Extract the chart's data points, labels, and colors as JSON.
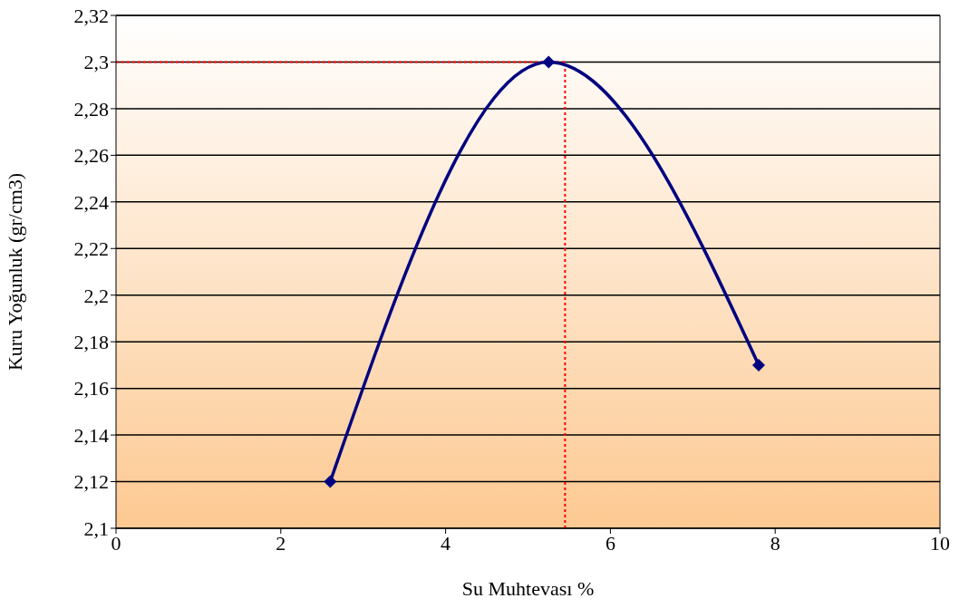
{
  "chart_data": {
    "type": "line",
    "xlabel": "Su Muhtevası %",
    "ylabel": "Kuru Yoğunluk (gr/cm3)",
    "x": [
      2.6,
      5.25,
      7.8
    ],
    "series": [
      {
        "color": "#000080",
        "values": [
          2.12,
          2.3,
          2.17
        ]
      }
    ],
    "xlim": [
      0,
      10
    ],
    "xticks": [
      0,
      2,
      4,
      6,
      8,
      10
    ],
    "ylim": [
      2.1,
      2.32
    ],
    "yticks": [
      {
        "value": 2.1,
        "label": "2,1"
      },
      {
        "value": 2.12,
        "label": "2,12"
      },
      {
        "value": 2.14,
        "label": "2,14"
      },
      {
        "value": 2.16,
        "label": "2,16"
      },
      {
        "value": 2.18,
        "label": "2,18"
      },
      {
        "value": 2.2,
        "label": "2,2"
      },
      {
        "value": 2.22,
        "label": "2,22"
      },
      {
        "value": 2.24,
        "label": "2,24"
      },
      {
        "value": 2.26,
        "label": "2,26"
      },
      {
        "value": 2.28,
        "label": "2,28"
      },
      {
        "value": 2.3,
        "label": "2,3"
      },
      {
        "value": 2.32,
        "label": "2,32"
      }
    ],
    "grid": "y",
    "marker": "diamond",
    "line_style": "solid",
    "legend": false,
    "ref_lines": [
      {
        "axis": "x",
        "value": 5.45,
        "color": "#ff0000",
        "line_style": "dotted"
      },
      {
        "axis": "y",
        "value": 2.3,
        "color": "#ff0000",
        "line_style": "dotted"
      }
    ]
  }
}
